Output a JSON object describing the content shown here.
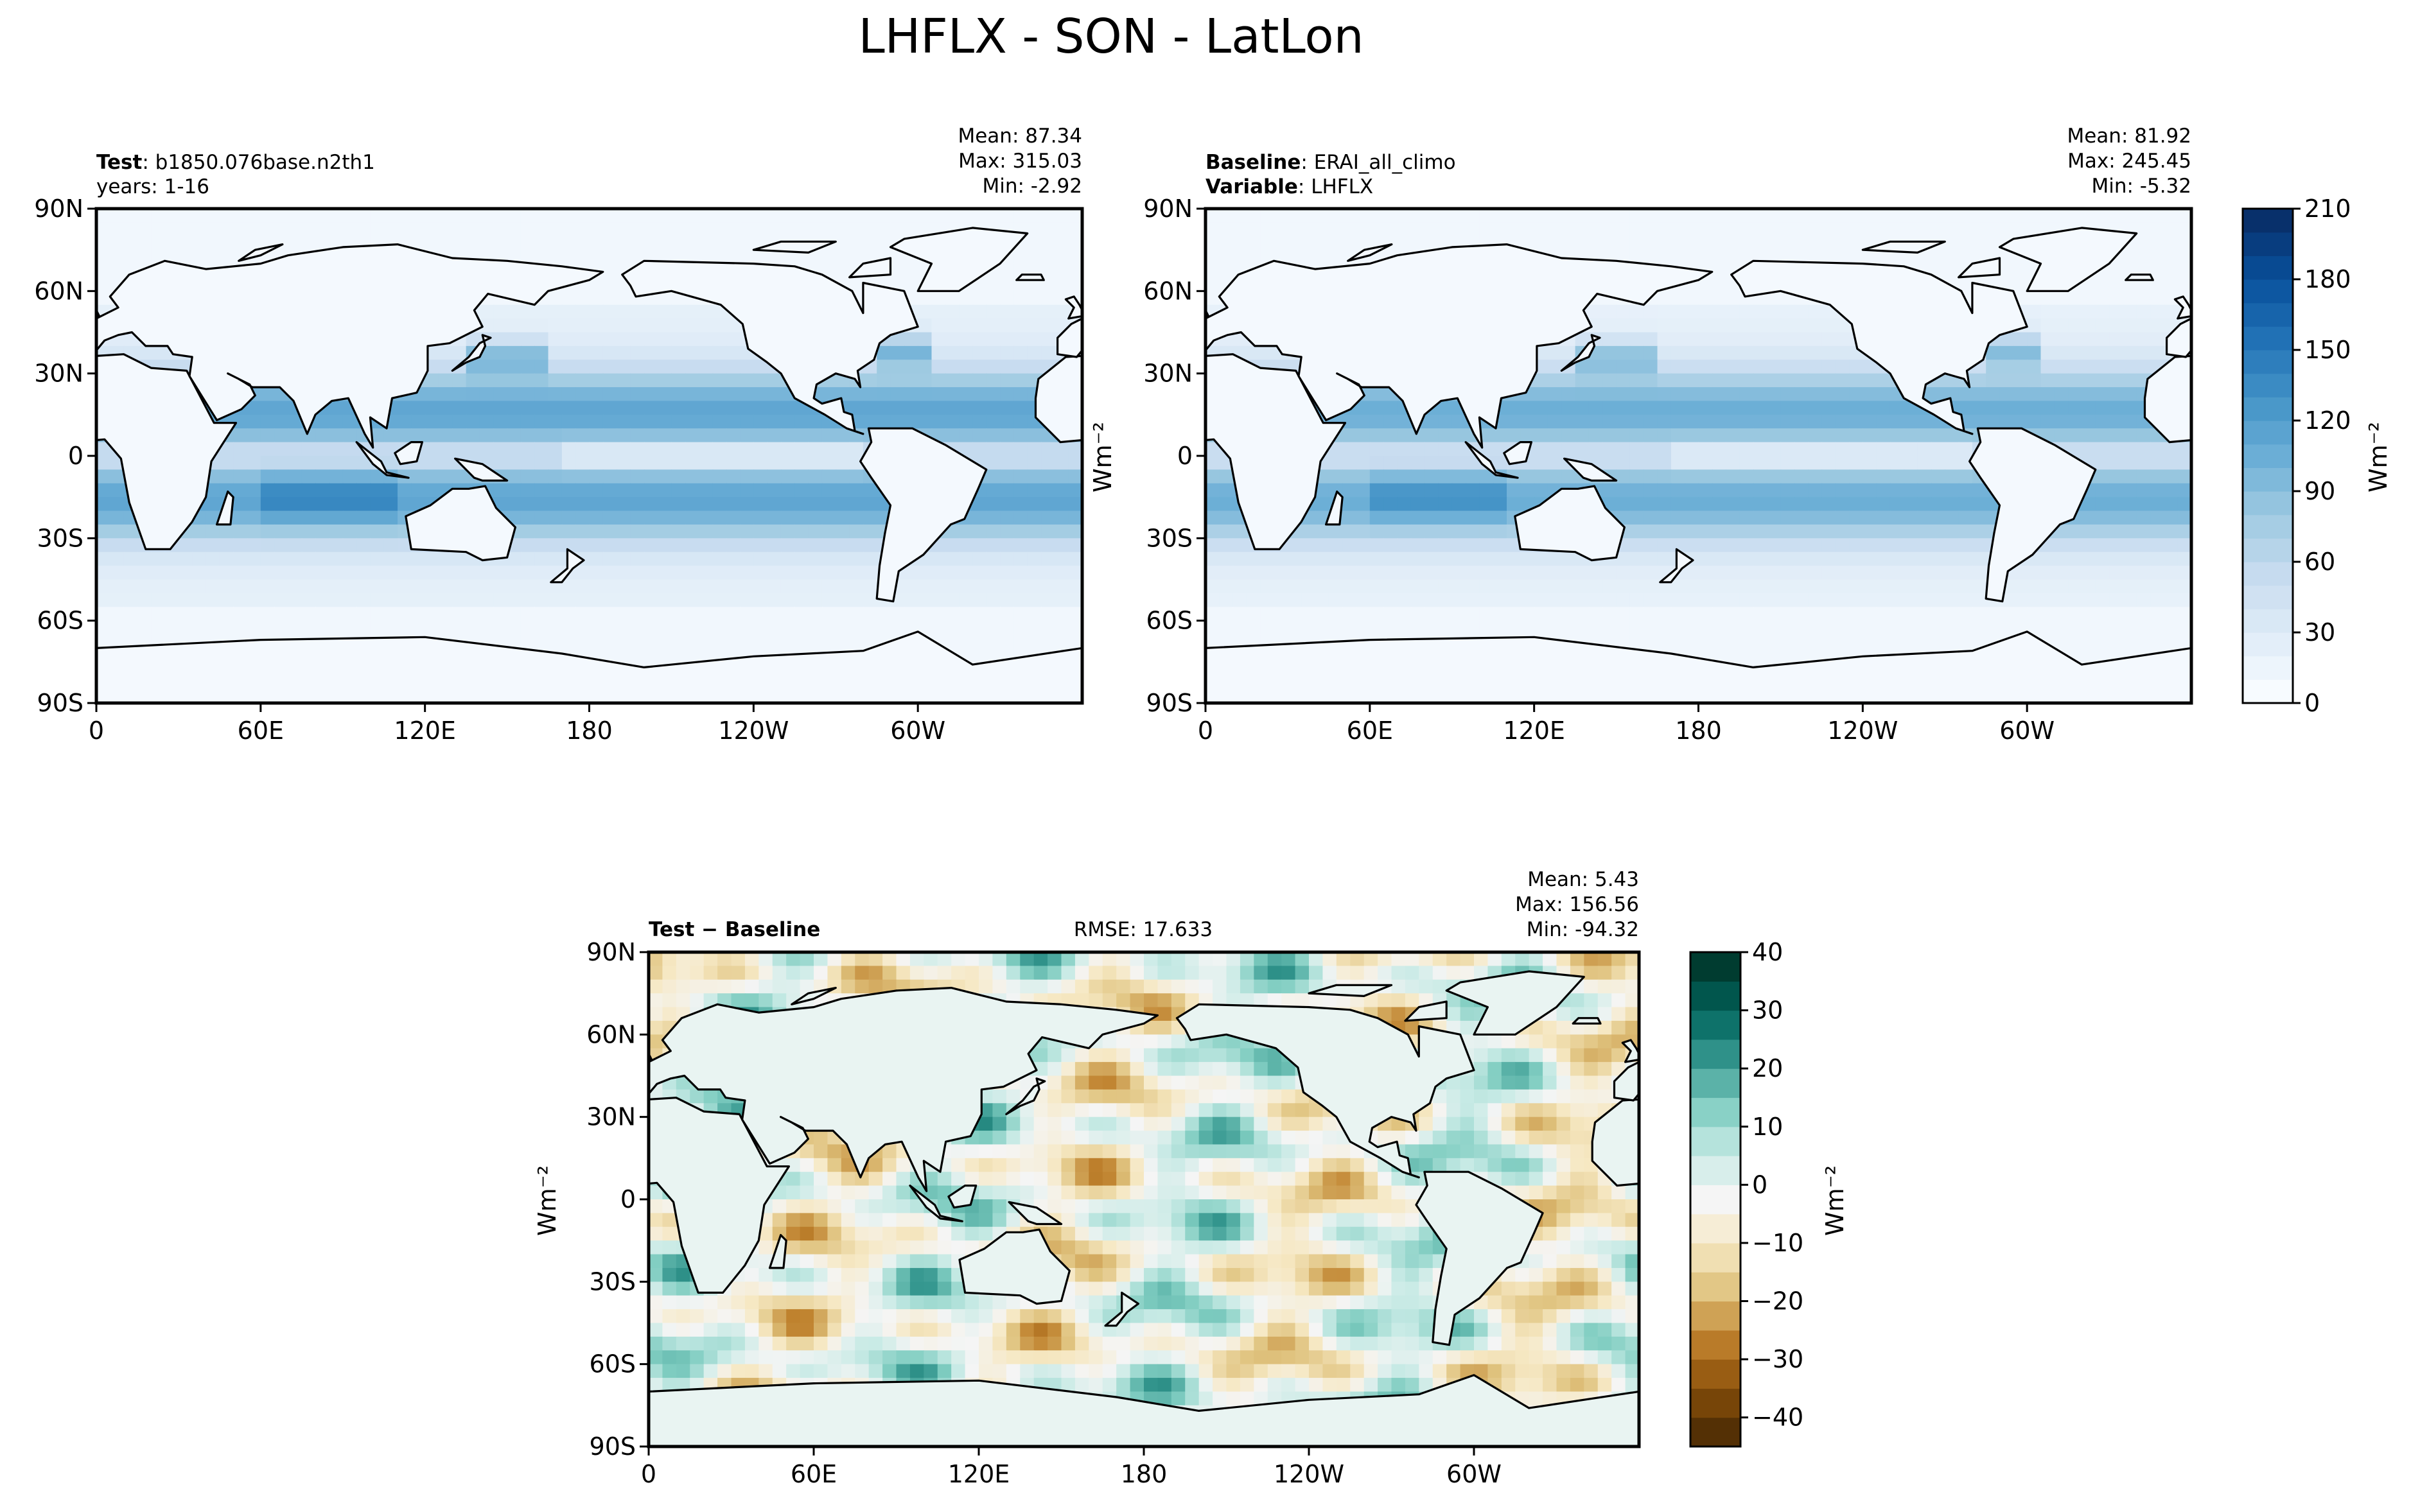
{
  "figure": {
    "title": "LHFLX - SON - LatLon"
  },
  "panels": {
    "test": {
      "label_bold": "Test",
      "label_value": "b1850.076base.n2th1",
      "line2": "years: 1-16",
      "stats": [
        "Mean: 87.34",
        "Max: 315.03",
        "Min: -2.92"
      ]
    },
    "baseline": {
      "label_bold": "Baseline",
      "label_value": "ERAI_all_climo",
      "line2_bold": "Variable",
      "line2_value": "LHFLX",
      "stats": [
        "Mean: 81.92",
        "Max: 245.45",
        "Min: -5.32"
      ]
    },
    "diff": {
      "label_left": "Test",
      "label_minus": " − ",
      "label_right": "Baseline",
      "rmse": "RMSE: 17.633",
      "stats": [
        "Mean:  5.43",
        "Max: 156.56",
        "Min: -94.32"
      ]
    }
  },
  "chart_data": [
    {
      "type": "heatmap",
      "name": "Test",
      "projection": "latlon",
      "colormap": "Blues",
      "xlabel": "",
      "ylabel": "",
      "x_ticks": [
        "0",
        "60E",
        "120E",
        "180",
        "120W",
        "60W"
      ],
      "y_ticks": [
        "90N",
        "60N",
        "30N",
        "0",
        "30S",
        "60S",
        "90S"
      ],
      "xlim": [
        0,
        360
      ],
      "ylim": [
        -90,
        90
      ],
      "mean": 87.34,
      "max": 315.03,
      "min": -2.92
    },
    {
      "type": "heatmap",
      "name": "Baseline",
      "projection": "latlon",
      "colormap": "Blues",
      "xlabel": "",
      "ylabel": "Wm⁻²",
      "x_ticks": [
        "0",
        "60E",
        "120E",
        "180",
        "120W",
        "60W"
      ],
      "y_ticks": [
        "90N",
        "60N",
        "30N",
        "0",
        "30S",
        "60S",
        "90S"
      ],
      "xlim": [
        0,
        360
      ],
      "ylim": [
        -90,
        90
      ],
      "mean": 81.92,
      "max": 245.45,
      "min": -5.32,
      "colorbar": {
        "label": "Wm⁻²",
        "ticks": [
          "0",
          "30",
          "60",
          "90",
          "120",
          "150",
          "180",
          "210"
        ],
        "range": [
          0,
          210
        ],
        "levels": 21
      }
    },
    {
      "type": "heatmap",
      "name": "Test - Baseline",
      "projection": "latlon",
      "colormap": "BrBG",
      "xlabel": "",
      "ylabel": "Wm⁻²",
      "x_ticks": [
        "0",
        "60E",
        "120E",
        "180",
        "120W",
        "60W"
      ],
      "y_ticks": [
        "90N",
        "60N",
        "30N",
        "0",
        "30S",
        "60S",
        "90S"
      ],
      "xlim": [
        0,
        360
      ],
      "ylim": [
        -90,
        90
      ],
      "mean": 5.43,
      "max": 156.56,
      "min": -94.32,
      "rmse": 17.633,
      "colorbar": {
        "label": "Wm⁻²",
        "ticks": [
          "−40",
          "−30",
          "−20",
          "−10",
          "0",
          "10",
          "20",
          "30",
          "40"
        ],
        "range": [
          -45,
          40
        ],
        "levels": 17
      }
    }
  ],
  "colors": {
    "blues": [
      "#f7fbff",
      "#deebf7",
      "#c6dbef",
      "#9ecae1",
      "#6baed6",
      "#4292c6",
      "#2171b5",
      "#08519c",
      "#08306b"
    ],
    "brbg": [
      "#543005",
      "#8c510a",
      "#bf812d",
      "#dfc27d",
      "#f6e8c3",
      "#f5f5f5",
      "#c7eae5",
      "#80cdc1",
      "#35978f",
      "#01665e",
      "#003c30"
    ],
    "coast": "#000000"
  }
}
